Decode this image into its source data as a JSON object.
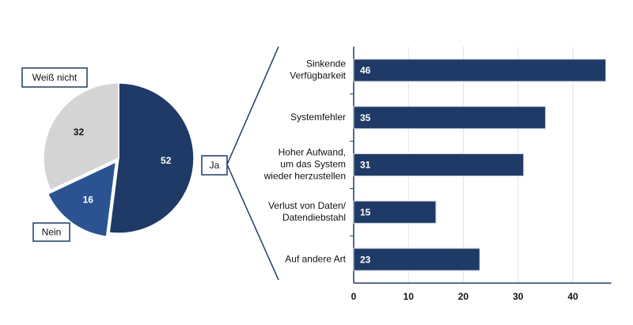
{
  "chart_data": [
    {
      "type": "pie",
      "categories": [
        "Ja",
        "Nein",
        "Weiß nicht"
      ],
      "values": [
        52,
        16,
        32
      ],
      "colors": [
        "#1f3a66",
        "#2b5391",
        "#d4d4d4"
      ]
    },
    {
      "type": "bar",
      "orientation": "horizontal",
      "categories": [
        "Sinkende\nVerfügbarkeit",
        "Systemfehler",
        "Hoher Aufwand,\num das System\nwieder herzustellen",
        "Verlust von Daten/\nDatendiebstahl",
        "Auf andere Art"
      ],
      "values": [
        46,
        35,
        31,
        15,
        23
      ],
      "color": "#1f3a66",
      "xlim": [
        0,
        47
      ],
      "xticks": [
        0,
        10,
        20,
        30,
        40
      ],
      "grid": true
    }
  ]
}
